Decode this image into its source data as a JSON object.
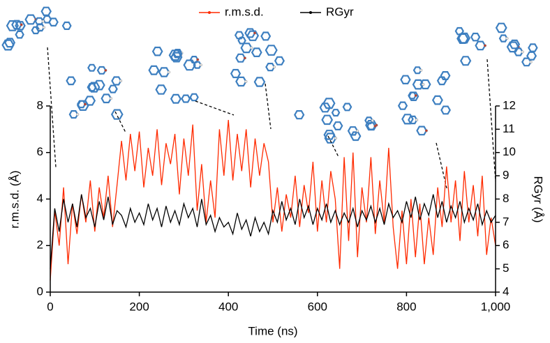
{
  "chart_data": {
    "type": "line",
    "xlabel": "Time (ns)",
    "ylabel": "r.m.s.d. (Å)",
    "y2label": "RGyr (Å)",
    "x": [
      0,
      10,
      20,
      30,
      40,
      50,
      60,
      70,
      80,
      90,
      100,
      110,
      120,
      130,
      140,
      150,
      160,
      170,
      180,
      190,
      200,
      210,
      220,
      230,
      240,
      250,
      260,
      270,
      280,
      290,
      300,
      310,
      320,
      330,
      340,
      350,
      360,
      370,
      380,
      390,
      400,
      410,
      420,
      430,
      440,
      450,
      460,
      470,
      480,
      490,
      500,
      510,
      520,
      530,
      540,
      550,
      560,
      570,
      580,
      590,
      600,
      610,
      620,
      630,
      640,
      650,
      660,
      670,
      680,
      690,
      700,
      710,
      720,
      730,
      740,
      750,
      760,
      770,
      780,
      790,
      800,
      810,
      820,
      830,
      840,
      850,
      860,
      870,
      880,
      890,
      900,
      910,
      920,
      930,
      940,
      950,
      960,
      970,
      980,
      990,
      1000
    ],
    "series": [
      {
        "name": "r.m.s.d.",
        "color": "#ff2a00",
        "axis": "y",
        "values": [
          0.5,
          3.5,
          2.0,
          4.5,
          1.2,
          3.8,
          2.5,
          4.2,
          3.0,
          4.8,
          2.6,
          4.5,
          3.2,
          5.0,
          2.8,
          4.6,
          6.5,
          4.8,
          6.8,
          5.2,
          6.9,
          4.5,
          6.2,
          5.0,
          7.0,
          4.6,
          6.4,
          5.5,
          6.8,
          4.2,
          6.6,
          5.0,
          7.2,
          3.5,
          5.5,
          3.0,
          4.8,
          3.2,
          7.0,
          5.0,
          7.4,
          4.8,
          6.8,
          5.2,
          7.0,
          4.5,
          6.6,
          5.0,
          6.4,
          5.6,
          3.0,
          4.5,
          2.6,
          4.2,
          3.2,
          5.0,
          2.8,
          4.6,
          3.4,
          5.6,
          2.6,
          4.8,
          3.0,
          5.2,
          4.0,
          1.0,
          5.8,
          2.2,
          6.0,
          1.5,
          4.5,
          3.0,
          5.8,
          2.5,
          4.8,
          3.0,
          6.2,
          2.8,
          1.0,
          3.5,
          1.2,
          4.0,
          1.5,
          3.8,
          1.2,
          3.2,
          1.6,
          4.5,
          2.8,
          5.4,
          3.0,
          4.8,
          2.2,
          5.2,
          3.0,
          4.6,
          2.4,
          5.0,
          1.6,
          3.2,
          2.0
        ]
      },
      {
        "name": "RGyr",
        "color": "#000000",
        "axis": "y2",
        "values": [
          5.0,
          7.6,
          6.6,
          8.0,
          7.0,
          7.8,
          6.8,
          8.2,
          7.2,
          7.6,
          6.8,
          7.9,
          7.1,
          8.1,
          6.9,
          7.5,
          7.3,
          6.8,
          7.6,
          7.0,
          7.4,
          6.9,
          7.8,
          7.1,
          7.6,
          6.8,
          7.7,
          7.0,
          7.5,
          6.9,
          7.8,
          7.2,
          7.6,
          6.8,
          8.0,
          6.9,
          7.3,
          6.6,
          7.2,
          6.8,
          7.0,
          6.5,
          7.4,
          6.7,
          7.1,
          6.4,
          7.2,
          6.6,
          7.0,
          6.5,
          7.5,
          7.0,
          7.9,
          7.1,
          7.6,
          6.9,
          8.0,
          7.2,
          7.7,
          6.9,
          7.6,
          7.1,
          7.8,
          7.0,
          7.5,
          6.9,
          7.4,
          7.0,
          7.6,
          6.8,
          7.5,
          7.1,
          7.7,
          7.0,
          7.6,
          6.9,
          7.8,
          7.2,
          7.5,
          7.0,
          7.9,
          7.2,
          8.1,
          7.1,
          7.8,
          7.3,
          8.2,
          7.2,
          7.9,
          7.0,
          7.7,
          7.2,
          7.9,
          7.0,
          7.6,
          7.1,
          7.8,
          6.9,
          7.5,
          7.0,
          7.3
        ]
      }
    ],
    "xlim": [
      0,
      1000
    ],
    "ylim": [
      0,
      8
    ],
    "y2lim": [
      4,
      12
    ],
    "xticks": [
      0,
      200,
      400,
      600,
      800,
      {
        "value": 1000,
        "label": "1,000"
      }
    ],
    "yticks": [
      0,
      2,
      4,
      6,
      8
    ],
    "y2ticks": [
      4,
      5,
      6,
      7,
      8,
      9,
      10,
      11,
      12
    ],
    "legend": "top"
  }
}
